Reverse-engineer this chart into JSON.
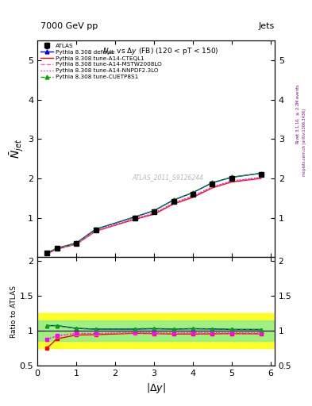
{
  "atlas_x": [
    0.25,
    0.5,
    1.0,
    1.5,
    2.5,
    3.0,
    3.5,
    4.0,
    4.5,
    5.0,
    5.75
  ],
  "atlas_y": [
    0.1,
    0.22,
    0.35,
    0.7,
    1.0,
    1.15,
    1.42,
    1.6,
    1.85,
    2.0,
    2.1
  ],
  "atlas_yerr": [
    0.005,
    0.008,
    0.01,
    0.015,
    0.02,
    0.025,
    0.025,
    0.03,
    0.035,
    0.04,
    0.045
  ],
  "default_x": [
    0.25,
    0.5,
    1.0,
    1.5,
    2.5,
    3.0,
    3.5,
    4.0,
    4.5,
    5.0,
    5.75
  ],
  "default_y": [
    0.105,
    0.225,
    0.36,
    0.71,
    1.02,
    1.18,
    1.45,
    1.64,
    1.89,
    2.03,
    2.13
  ],
  "cteql1_x": [
    0.25,
    0.5,
    1.0,
    1.5,
    2.5,
    3.0,
    3.5,
    4.0,
    4.5,
    5.0,
    5.75
  ],
  "cteql1_y": [
    0.09,
    0.205,
    0.33,
    0.66,
    0.96,
    1.09,
    1.35,
    1.52,
    1.76,
    1.91,
    2.0
  ],
  "mstw_x": [
    0.25,
    0.5,
    1.0,
    1.5,
    2.5,
    3.0,
    3.5,
    4.0,
    4.5,
    5.0,
    5.75
  ],
  "mstw_y": [
    0.092,
    0.21,
    0.335,
    0.67,
    0.975,
    1.11,
    1.37,
    1.55,
    1.78,
    1.93,
    2.02
  ],
  "nnpdf_x": [
    0.25,
    0.5,
    1.0,
    1.5,
    2.5,
    3.0,
    3.5,
    4.0,
    4.5,
    5.0,
    5.75
  ],
  "nnpdf_y": [
    0.093,
    0.212,
    0.338,
    0.675,
    0.98,
    1.115,
    1.375,
    1.555,
    1.785,
    1.935,
    2.025
  ],
  "cuetp_x": [
    0.25,
    0.5,
    1.0,
    1.5,
    2.5,
    3.0,
    3.5,
    4.0,
    4.5,
    5.0,
    5.75
  ],
  "cuetp_y": [
    0.105,
    0.225,
    0.36,
    0.71,
    1.02,
    1.18,
    1.45,
    1.64,
    1.89,
    2.03,
    2.13
  ],
  "ratio_x": [
    0.25,
    0.5,
    1.0,
    1.5,
    2.5,
    3.0,
    3.5,
    4.0,
    4.5,
    5.0,
    5.75
  ],
  "ratio_default_y": [
    1.07,
    1.07,
    1.03,
    1.02,
    1.02,
    1.025,
    1.02,
    1.025,
    1.022,
    1.015,
    1.014
  ],
  "ratio_cteql1_y": [
    0.75,
    0.88,
    0.935,
    0.94,
    0.96,
    0.955,
    0.95,
    0.95,
    0.952,
    0.955,
    0.952
  ],
  "ratio_mstw_y": [
    0.87,
    0.92,
    0.955,
    0.955,
    0.968,
    0.965,
    0.962,
    0.966,
    0.964,
    0.965,
    0.963
  ],
  "ratio_nnpdf_y": [
    0.875,
    0.925,
    0.96,
    0.958,
    0.972,
    0.968,
    0.965,
    0.968,
    0.966,
    0.967,
    0.965
  ],
  "ratio_cuetp_y": [
    1.07,
    1.07,
    1.03,
    1.02,
    1.025,
    1.03,
    1.022,
    1.028,
    1.022,
    1.015,
    1.014
  ],
  "band_yellow_lo": 0.75,
  "band_yellow_hi": 1.25,
  "band_green_lo": 0.85,
  "band_green_hi": 1.15,
  "color_atlas": "#000000",
  "color_default": "#0000ff",
  "color_cteql1": "#ff0000",
  "color_mstw": "#ff69b4",
  "color_nnpdf": "#ff00ff",
  "color_cuetp": "#00aa00",
  "ylim_main": [
    0.0,
    5.5
  ],
  "ylim_ratio": [
    0.5,
    2.05
  ],
  "xlim": [
    0.0,
    6.1
  ],
  "main_yticks": [
    1,
    2,
    3,
    4,
    5
  ],
  "ratio_yticks": [
    0.5,
    1.0,
    1.5,
    2.0
  ],
  "xticks": [
    0,
    1,
    2,
    3,
    4,
    5,
    6
  ]
}
